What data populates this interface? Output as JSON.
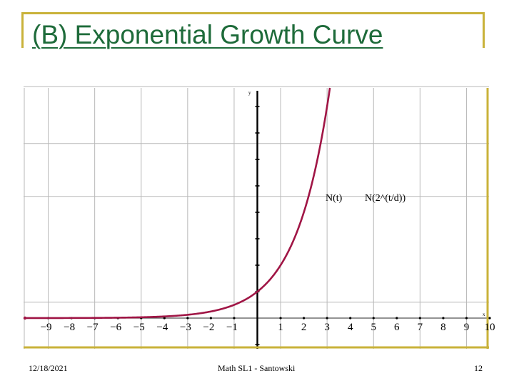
{
  "slide": {
    "title": "(B) Exponential Growth Curve",
    "footer_date": "12/18/2021",
    "footer_center": "Math SL1 - Santowski",
    "page_number": "12",
    "accent_color": "#c9b23a",
    "title_color": "#1e6b3a"
  },
  "chart_data": {
    "type": "line",
    "title": "",
    "xlabel": "x",
    "ylabel": "y",
    "xlim": [
      -10,
      10
    ],
    "x_ticks": [
      -9,
      -8,
      -7,
      -6,
      -5,
      -4,
      -3,
      -2,
      -1,
      1,
      2,
      3,
      4,
      5,
      6,
      7,
      8,
      9,
      10
    ],
    "y_axis_labels": "none shown",
    "grid": true,
    "annotation": "N(t) = N(2^(t/d))",
    "annotation_parts": [
      "N(t)",
      "N(2^(t/d))"
    ],
    "curve_color": "#a01545",
    "series": [
      {
        "x": [
          -10,
          -9,
          -8,
          -7,
          -6,
          -5,
          -4,
          -3,
          -2,
          -1,
          0,
          1,
          2,
          3
        ],
        "y": [
          0.001,
          0.002,
          0.004,
          0.008,
          0.016,
          0.031,
          0.0625,
          0.125,
          0.25,
          0.5,
          1,
          2,
          4,
          8
        ]
      }
    ]
  }
}
